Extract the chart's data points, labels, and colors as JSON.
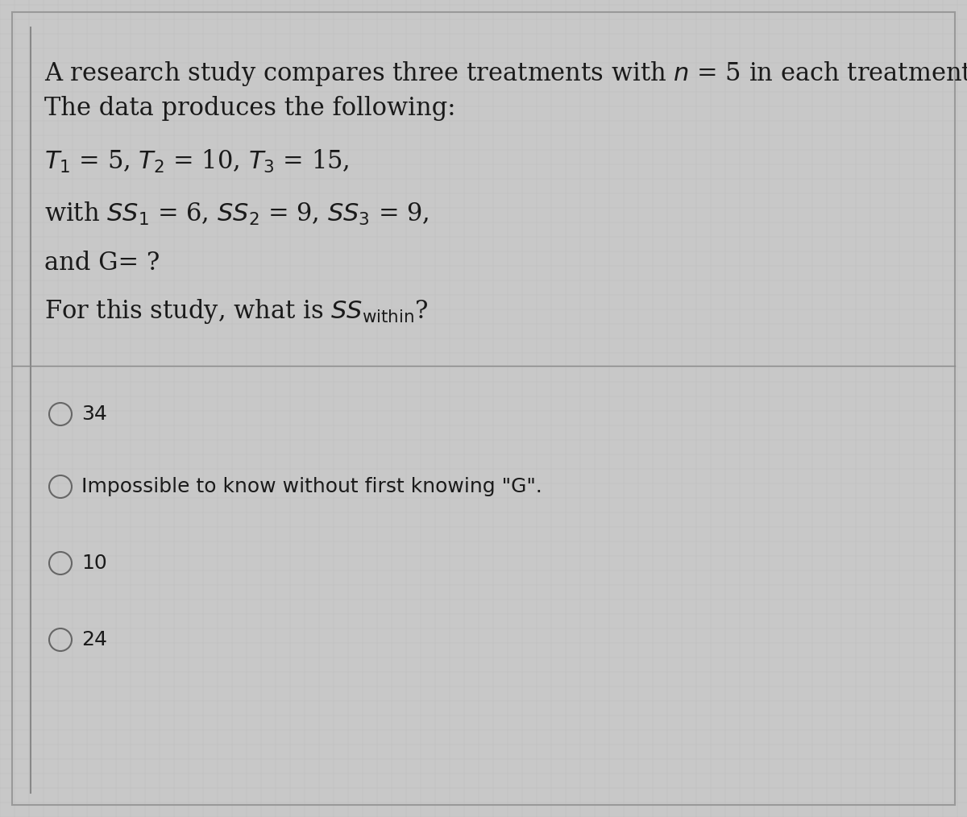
{
  "bg_color": "#c8c8c8",
  "text_color": "#1a1a1a",
  "border_color": "#999999",
  "line_color": "#888888",
  "options": [
    "34",
    "Impossible to know without first knowing \"G\".",
    "10",
    "24"
  ],
  "font_size_main": 22,
  "font_size_options": 18,
  "circle_color": "#666666",
  "grid_color": "#b8b8b8"
}
